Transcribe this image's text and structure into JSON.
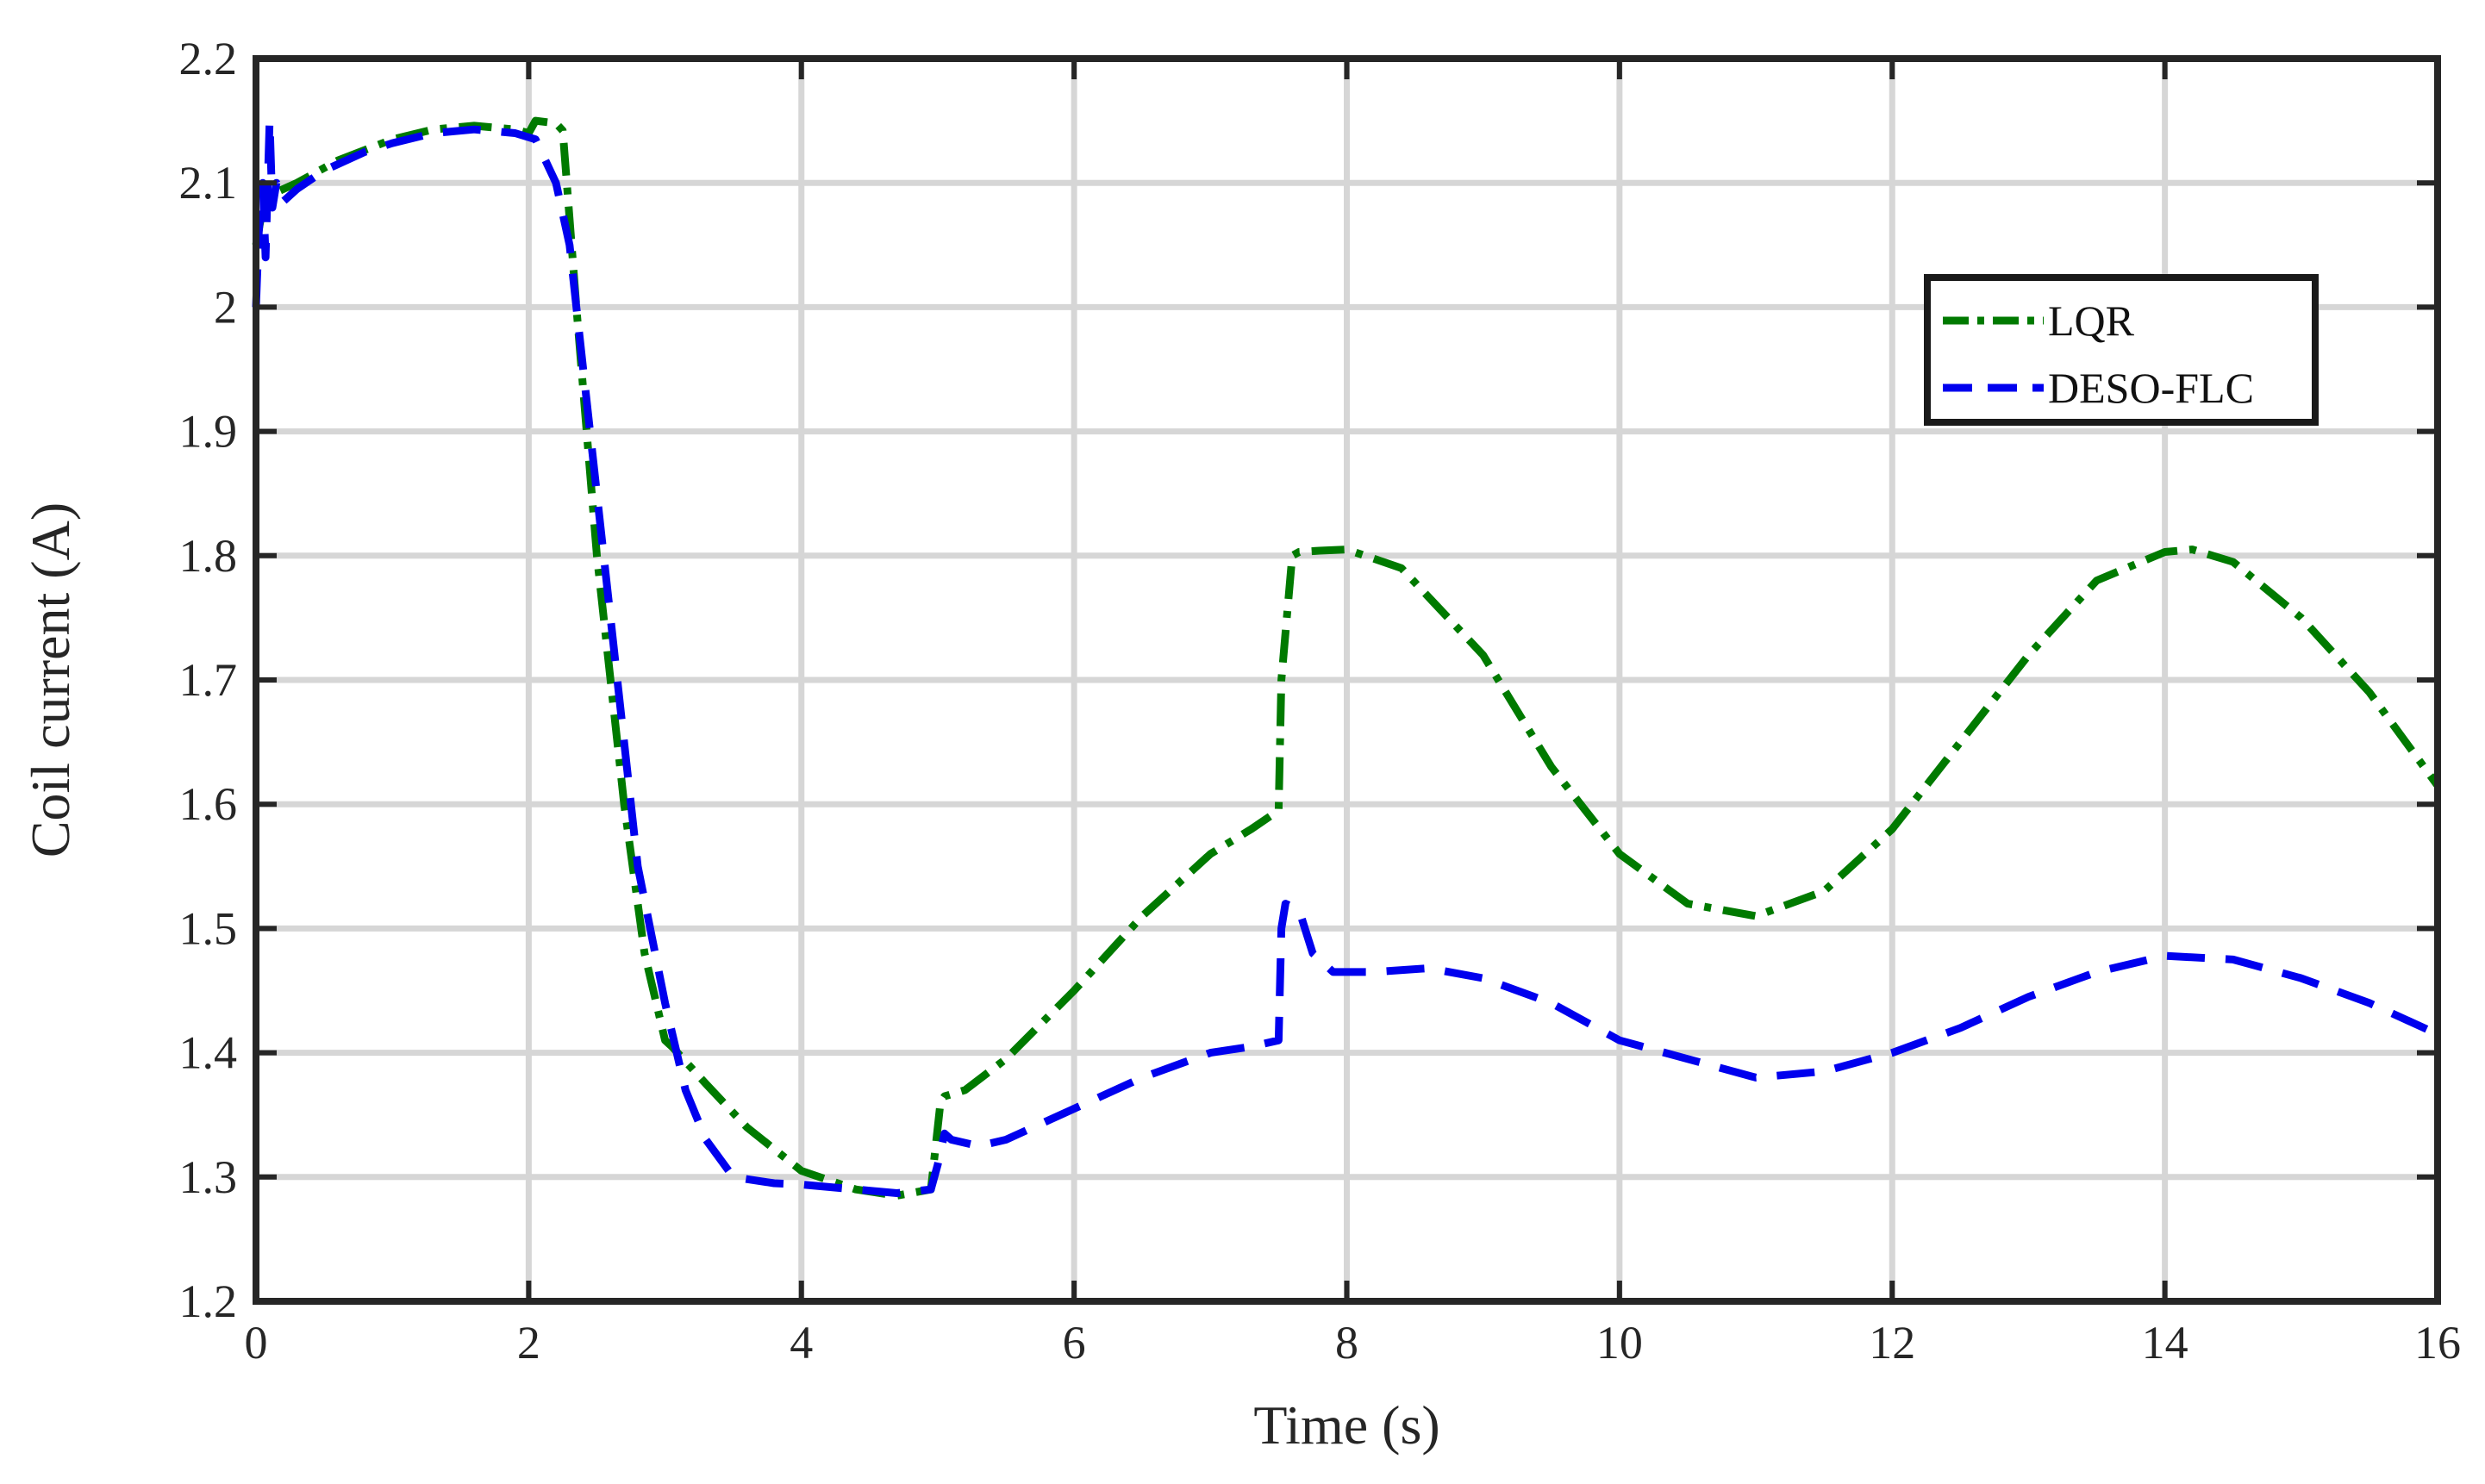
{
  "chart_data": {
    "type": "line",
    "xlabel": "Time (s)",
    "ylabel": "Coil current (A)",
    "xlim": [
      0,
      16
    ],
    "ylim": [
      1.2,
      2.2
    ],
    "xticks": [
      "0",
      "2",
      "4",
      "6",
      "8",
      "10",
      "12",
      "14",
      "16"
    ],
    "yticks": [
      "1.2",
      "1.3",
      "1.4",
      "1.5",
      "1.6",
      "1.7",
      "1.8",
      "1.9",
      "2",
      "2.1",
      "2.2"
    ],
    "grid": true,
    "legend_position": "upper-right",
    "series": [
      {
        "name": "LQR",
        "color": "#007a00",
        "line_style": "dash-dot",
        "x": [
          0,
          0.05,
          0.1,
          0.3,
          0.6,
          1.0,
          1.3,
          1.6,
          1.9,
          2.0,
          2.05,
          2.2,
          2.25,
          2.35,
          2.5,
          2.7,
          2.85,
          3.0,
          3.05,
          3.3,
          3.6,
          4.0,
          4.4,
          4.7,
          4.95,
          5.02,
          5.05,
          5.2,
          5.5,
          6.0,
          6.5,
          7.0,
          7.3,
          7.5,
          7.52,
          7.6,
          7.65,
          7.8,
          8.0,
          8.4,
          9.0,
          9.5,
          10.0,
          10.5,
          11.0,
          11.5,
          12.0,
          12.5,
          13.0,
          13.5,
          14.0,
          14.2,
          14.5,
          15.0,
          15.5,
          16.0
        ],
        "y": [
          2.05,
          2.08,
          2.09,
          2.1,
          2.118,
          2.135,
          2.143,
          2.146,
          2.143,
          2.14,
          2.15,
          2.148,
          2.142,
          2.0,
          1.8,
          1.6,
          1.48,
          1.41,
          1.405,
          1.375,
          1.34,
          1.305,
          1.29,
          1.285,
          1.29,
          1.36,
          1.365,
          1.37,
          1.395,
          1.45,
          1.51,
          1.56,
          1.58,
          1.595,
          1.7,
          1.8,
          1.803,
          1.804,
          1.805,
          1.79,
          1.72,
          1.63,
          1.56,
          1.52,
          1.51,
          1.53,
          1.58,
          1.65,
          1.72,
          1.78,
          1.803,
          1.805,
          1.795,
          1.75,
          1.69,
          1.615
        ]
      },
      {
        "name": "DESO-FLC",
        "color": "#0000ee",
        "line_style": "dashed",
        "x": [
          0,
          0.02,
          0.05,
          0.07,
          0.1,
          0.12,
          0.15,
          0.2,
          0.3,
          0.5,
          0.8,
          1.0,
          1.3,
          1.6,
          1.9,
          2.05,
          2.2,
          2.3,
          2.4,
          2.6,
          2.8,
          3.0,
          3.15,
          3.3,
          3.5,
          3.8,
          4.0,
          4.4,
          4.7,
          4.95,
          5.0,
          5.05,
          5.1,
          5.3,
          5.5,
          6.0,
          6.5,
          7.0,
          7.3,
          7.5,
          7.52,
          7.55,
          7.65,
          7.75,
          7.9,
          8.2,
          8.6,
          9.0,
          9.5,
          10.0,
          10.5,
          11.0,
          11.5,
          12.0,
          12.5,
          13.0,
          13.5,
          14.0,
          14.5,
          15.0,
          15.5,
          16.0
        ],
        "y": [
          2.0,
          2.06,
          2.1,
          2.04,
          2.15,
          2.08,
          2.1,
          2.085,
          2.095,
          2.11,
          2.125,
          2.132,
          2.14,
          2.143,
          2.14,
          2.135,
          2.1,
          2.05,
          1.95,
          1.75,
          1.55,
          1.44,
          1.37,
          1.33,
          1.3,
          1.295,
          1.294,
          1.29,
          1.287,
          1.29,
          1.31,
          1.335,
          1.33,
          1.325,
          1.33,
          1.355,
          1.38,
          1.4,
          1.405,
          1.41,
          1.5,
          1.52,
          1.515,
          1.48,
          1.465,
          1.465,
          1.468,
          1.46,
          1.44,
          1.41,
          1.395,
          1.38,
          1.385,
          1.4,
          1.42,
          1.445,
          1.465,
          1.478,
          1.475,
          1.46,
          1.44,
          1.415
        ]
      }
    ]
  }
}
